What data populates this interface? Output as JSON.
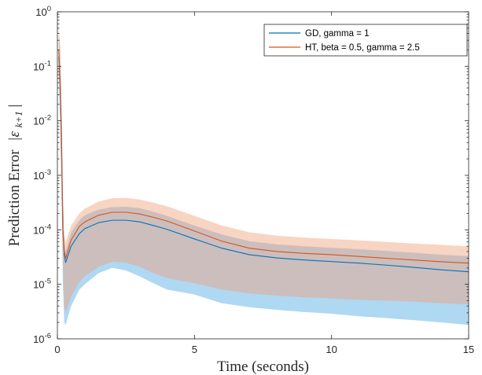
{
  "chart_data": {
    "type": "line",
    "xlabel": "Time (seconds)",
    "ylabel": "Prediction Error",
    "ylabel_math": "|ε",
    "ylabel_math_sub": "k+1",
    "ylabel_math_end": "|",
    "xlim": [
      0,
      15
    ],
    "ylim": [
      1e-06,
      1
    ],
    "yscale": "log",
    "x_ticks": [
      "0",
      "5",
      "10",
      "15"
    ],
    "x_tick_values": [
      0,
      5,
      10,
      15
    ],
    "y_tick_exponents": [
      -6,
      -5,
      -4,
      -3,
      -2,
      -1,
      0
    ],
    "y_tick_base": "10",
    "grid": false,
    "legend_position": "top-right",
    "series": [
      {
        "name": "GD, gamma = 1",
        "color": "#0072BD",
        "band_color": "#4DA8E3",
        "x": [
          0.05,
          0.1,
          0.15,
          0.2,
          0.25,
          0.3,
          0.5,
          0.8,
          1.0,
          1.5,
          2.0,
          2.5,
          3.0,
          3.5,
          4.0,
          5.0,
          6.0,
          7.0,
          8.0,
          9.0,
          10.0,
          11.0,
          12.0,
          13.0,
          14.0,
          15.0
        ],
        "mean": [
          0.15,
          0.05,
          0.005,
          0.0001,
          3.5e-05,
          2.5e-05,
          5e-05,
          8.5e-05,
          0.000105,
          0.000135,
          0.00015,
          0.00015,
          0.00014,
          0.00012,
          0.000102,
          6.8e-05,
          4.6e-05,
          3.5e-05,
          3.05e-05,
          2.8e-05,
          2.62e-05,
          2.45e-05,
          2.25e-05,
          2.05e-05,
          1.85e-05,
          1.7e-05
        ],
        "band_upper": [
          0.4,
          0.2,
          0.02,
          0.0005,
          6e-05,
          4e-05,
          9e-05,
          0.00015,
          0.000185,
          0.000235,
          0.00026,
          0.000265,
          0.00025,
          0.000215,
          0.00018,
          0.00012,
          8.2e-05,
          6.2e-05,
          5.4e-05,
          5e-05,
          4.7e-05,
          4.4e-05,
          4.1e-05,
          3.8e-05,
          3.5e-05,
          3.3e-05
        ],
        "band_lower": [
          0.05,
          0.01,
          0.0005,
          1e-05,
          2e-06,
          1.8e-06,
          4e-06,
          8e-06,
          1e-05,
          1.6e-05,
          2e-05,
          1.8e-05,
          1.4e-05,
          1.05e-05,
          8e-06,
          6.5e-06,
          4.5e-06,
          3.8e-06,
          3.4e-06,
          3.1e-06,
          2.9e-06,
          2.6e-06,
          2.4e-06,
          2.2e-06,
          2e-06,
          1.8e-06
        ]
      },
      {
        "name": "HT, beta = 0.5, gamma = 2.5",
        "color": "#D95319",
        "band_color": "#F0A07A",
        "x": [
          0.05,
          0.1,
          0.15,
          0.2,
          0.25,
          0.3,
          0.5,
          0.8,
          1.0,
          1.5,
          2.0,
          2.5,
          3.0,
          3.5,
          4.0,
          5.0,
          6.0,
          7.0,
          8.0,
          9.0,
          10.0,
          11.0,
          12.0,
          13.0,
          14.0,
          15.0
        ],
        "mean": [
          0.2,
          0.05,
          0.003,
          0.0001,
          4e-05,
          3e-05,
          6.5e-05,
          0.000115,
          0.00014,
          0.000185,
          0.00021,
          0.00021,
          0.000195,
          0.00017,
          0.000145,
          9.5e-05,
          6.2e-05,
          4.6e-05,
          4e-05,
          3.7e-05,
          3.5e-05,
          3.25e-05,
          3e-05,
          2.8e-05,
          2.6e-05,
          2.45e-05
        ],
        "band_upper": [
          0.5,
          0.25,
          0.01,
          0.0004,
          8e-05,
          6e-05,
          0.00012,
          0.0002,
          0.000245,
          0.00033,
          0.00038,
          0.000385,
          0.00036,
          0.000315,
          0.00027,
          0.00018,
          0.00012,
          9e-05,
          7.8e-05,
          7.2e-05,
          6.8e-05,
          6.4e-05,
          6e-05,
          5.6e-05,
          5.3e-05,
          5e-05
        ],
        "band_lower": [
          0.08,
          0.02,
          0.0008,
          2.5e-05,
          4e-06,
          3e-06,
          6e-06,
          1.1e-05,
          1.4e-05,
          2.1e-05,
          2.6e-05,
          2.5e-05,
          2.1e-05,
          1.6e-05,
          1.3e-05,
          1.05e-05,
          8e-06,
          6.8e-06,
          6.2e-06,
          5.8e-06,
          5.5e-06,
          5.2e-06,
          5e-06,
          4.8e-06,
          4.5e-06,
          4.3e-06
        ]
      }
    ]
  }
}
